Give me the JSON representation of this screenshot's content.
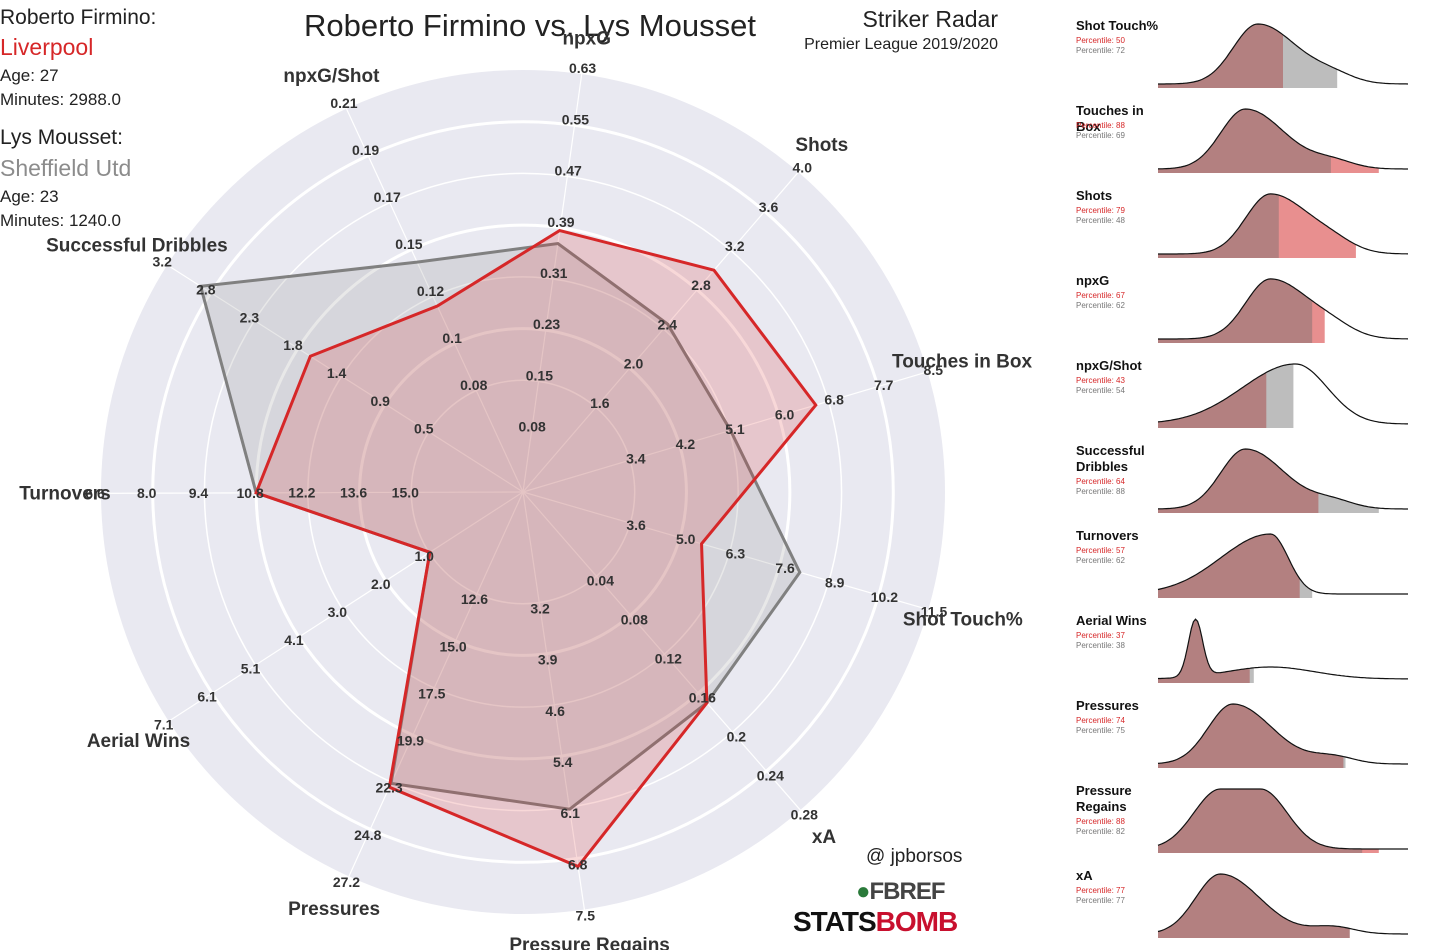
{
  "header": {
    "title": "Roberto Firmino vs. Lys Mousset",
    "radar_title": "Striker Radar",
    "competition": "Premier League 2019/2020"
  },
  "players": [
    {
      "name": "Roberto Firmino:",
      "club": "Liverpool",
      "age": "Age: 27",
      "minutes": "Minutes: 2988.0",
      "color": "#d62728"
    },
    {
      "name": "Lys Mousset:",
      "club": "Sheffield Utd",
      "age": "Age: 23",
      "minutes": "Minutes: 1240.0",
      "color": "#808080"
    }
  ],
  "credits": {
    "handle": "@ jpborsos",
    "fbref": "FBREF",
    "statsbomb_a": "STATS",
    "statsbomb_b": "BOMB"
  },
  "colors": {
    "player1": "#d62728",
    "player2": "#808080",
    "radar_bg": "#e9e9f1",
    "kde_fill_dark": "#b38080"
  },
  "chart_data": [
    {
      "type": "radar",
      "title": "Striker Radar",
      "axes": [
        {
          "name": "npxG",
          "ticks": [
            "0.08",
            "0.15",
            "0.23",
            "0.31",
            "0.39",
            "0.47",
            "0.55",
            "0.63"
          ],
          "min": 0.08,
          "max": 0.63
        },
        {
          "name": "Shots",
          "ticks": [
            "1.6",
            "2.0",
            "2.4",
            "2.8",
            "3.2",
            "3.6",
            "4.0"
          ],
          "min": 1.2,
          "max": 4.0
        },
        {
          "name": "Touches in Box",
          "ticks": [
            "3.4",
            "4.2",
            "5.1",
            "6.0",
            "6.8",
            "7.7",
            "8.5"
          ],
          "min": 2.6,
          "max": 8.5
        },
        {
          "name": "Shot Touch%",
          "ticks": [
            "3.6",
            "5.0",
            "6.3",
            "7.6",
            "8.9",
            "10.2",
            "11.5"
          ],
          "min": 2.3,
          "max": 11.5
        },
        {
          "name": "xA",
          "ticks": [
            "0.04",
            "0.08",
            "0.12",
            "0.16",
            "0.2",
            "0.24",
            "0.28"
          ],
          "min": 0.0,
          "max": 0.28
        },
        {
          "name": "Pressure Regains",
          "ticks": [
            "3.2",
            "3.9",
            "4.6",
            "5.4",
            "6.1",
            "6.8",
            "7.5"
          ],
          "min": 2.5,
          "max": 7.5
        },
        {
          "name": "Pressures",
          "ticks": [
            "12.6",
            "15.0",
            "17.5",
            "19.9",
            "22.3",
            "24.8",
            "27.2"
          ],
          "min": 10.2,
          "max": 27.2
        },
        {
          "name": "Aerial Wins",
          "ticks": [
            "1.0",
            "2.0",
            "3.0",
            "4.1",
            "5.1",
            "6.1",
            "7.1"
          ],
          "min": 0.0,
          "max": 7.1
        },
        {
          "name": "Turnovers",
          "ticks": [
            "15.0",
            "13.6",
            "12.2",
            "10.8",
            "9.4",
            "8.0",
            "6.6"
          ],
          "min": 16.4,
          "max": 6.6
        },
        {
          "name": "Successful Dribbles",
          "ticks": [
            "0.5",
            "0.9",
            "1.4",
            "1.8",
            "2.3",
            "2.8",
            "3.2"
          ],
          "min": 0.0,
          "max": 3.2
        },
        {
          "name": "npxG/Shot",
          "ticks": [
            "0.08",
            "0.1",
            "0.12",
            "0.15",
            "0.17",
            "0.19",
            "0.21"
          ],
          "min": 0.06,
          "max": 0.21
        }
      ],
      "series": [
        {
          "name": "Roberto Firmino",
          "values": [
            0.39,
            3.0,
            6.6,
            5.5,
            0.17,
            6.9,
            22.6,
            1.0,
            10.8,
            1.7,
            0.12
          ]
        },
        {
          "name": "Lys Mousset",
          "values": [
            0.37,
            2.45,
            5.15,
            8.1,
            0.17,
            6.1,
            22.4,
            1.0,
            10.8,
            2.85,
            0.14
          ]
        }
      ]
    },
    {
      "type": "area",
      "title": "Percentile distributions",
      "panels": [
        {
          "label": "Shot Touch%",
          "p1": "Percentile: 50",
          "p2": "Percentile: 72",
          "v1": 50,
          "v2": 72,
          "peak": 0.4,
          "shape": "right-skew"
        },
        {
          "label": "Touches in Box",
          "p1": "Percentile: 88",
          "p2": "Percentile: 69",
          "v1": 88,
          "v2": 69,
          "peak": 0.35,
          "shape": "right-skew"
        },
        {
          "label": "Shots",
          "p1": "Percentile: 79",
          "p2": "Percentile: 48",
          "v1": 79,
          "v2": 48,
          "peak": 0.45,
          "shape": "right-skew"
        },
        {
          "label": "npxG",
          "p1": "Percentile: 67",
          "p2": "Percentile: 62",
          "v1": 67,
          "v2": 62,
          "peak": 0.45,
          "shape": "right-skew"
        },
        {
          "label": "npxG/Shot",
          "p1": "Percentile: 43",
          "p2": "Percentile: 54",
          "v1": 43,
          "v2": 54,
          "peak": 0.55,
          "shape": "wide"
        },
        {
          "label": "Successful Dribbles",
          "p1": "Percentile: 64",
          "p2": "Percentile: 88",
          "v1": 64,
          "v2": 88,
          "peak": 0.35,
          "shape": "right-skew"
        },
        {
          "label": "Turnovers",
          "p1": "Percentile: 57",
          "p2": "Percentile: 62",
          "v1": 57,
          "v2": 62,
          "peak": 0.45,
          "shape": "left-skew"
        },
        {
          "label": "Aerial Wins",
          "p1": "Percentile: 37",
          "p2": "Percentile: 38",
          "v1": 37,
          "v2": 38,
          "peak": 0.15,
          "shape": "sharp"
        },
        {
          "label": "Pressures",
          "p1": "Percentile: 74",
          "p2": "Percentile: 75",
          "v1": 74,
          "v2": 75,
          "peak": 0.3,
          "shape": "right-skew"
        },
        {
          "label": "Pressure Regains",
          "p1": "Percentile: 88",
          "p2": "Percentile: 82",
          "v1": 88,
          "v2": 82,
          "peak": 0.35,
          "shape": "plateau"
        },
        {
          "label": "xA",
          "p1": "Percentile: 77",
          "p2": "Percentile: 77",
          "v1": 77,
          "v2": 77,
          "peak": 0.25,
          "shape": "right-skew"
        }
      ]
    }
  ]
}
